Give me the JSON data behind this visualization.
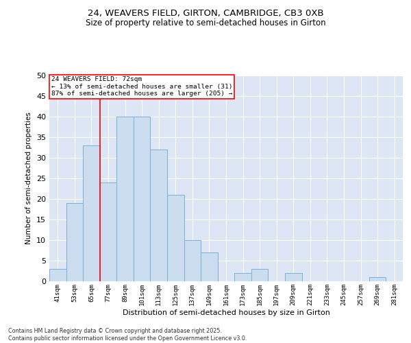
{
  "title1": "24, WEAVERS FIELD, GIRTON, CAMBRIDGE, CB3 0XB",
  "title2": "Size of property relative to semi-detached houses in Girton",
  "xlabel": "Distribution of semi-detached houses by size in Girton",
  "ylabel": "Number of semi-detached properties",
  "categories": [
    "41sqm",
    "53sqm",
    "65sqm",
    "77sqm",
    "89sqm",
    "101sqm",
    "113sqm",
    "125sqm",
    "137sqm",
    "149sqm",
    "161sqm",
    "173sqm",
    "185sqm",
    "197sqm",
    "209sqm",
    "221sqm",
    "233sqm",
    "245sqm",
    "257sqm",
    "269sqm",
    "281sqm"
  ],
  "values": [
    3,
    19,
    33,
    24,
    40,
    40,
    32,
    21,
    10,
    7,
    0,
    2,
    3,
    0,
    2,
    0,
    0,
    0,
    0,
    1,
    0
  ],
  "bar_color": "#ccddf0",
  "bar_edge_color": "#7aafd4",
  "bg_color": "#dce6f5",
  "grid_color": "#ffffff",
  "annotation_text1": "24 WEAVERS FIELD: 72sqm",
  "annotation_text2": "← 13% of semi-detached houses are smaller (31)",
  "annotation_text3": "87% of semi-detached houses are larger (205) →",
  "footer1": "Contains HM Land Registry data © Crown copyright and database right 2025.",
  "footer2": "Contains public sector information licensed under the Open Government Licence v3.0.",
  "ylim": [
    0,
    50
  ],
  "yticks": [
    0,
    5,
    10,
    15,
    20,
    25,
    30,
    35,
    40,
    45,
    50
  ],
  "red_line_x": 2.5
}
